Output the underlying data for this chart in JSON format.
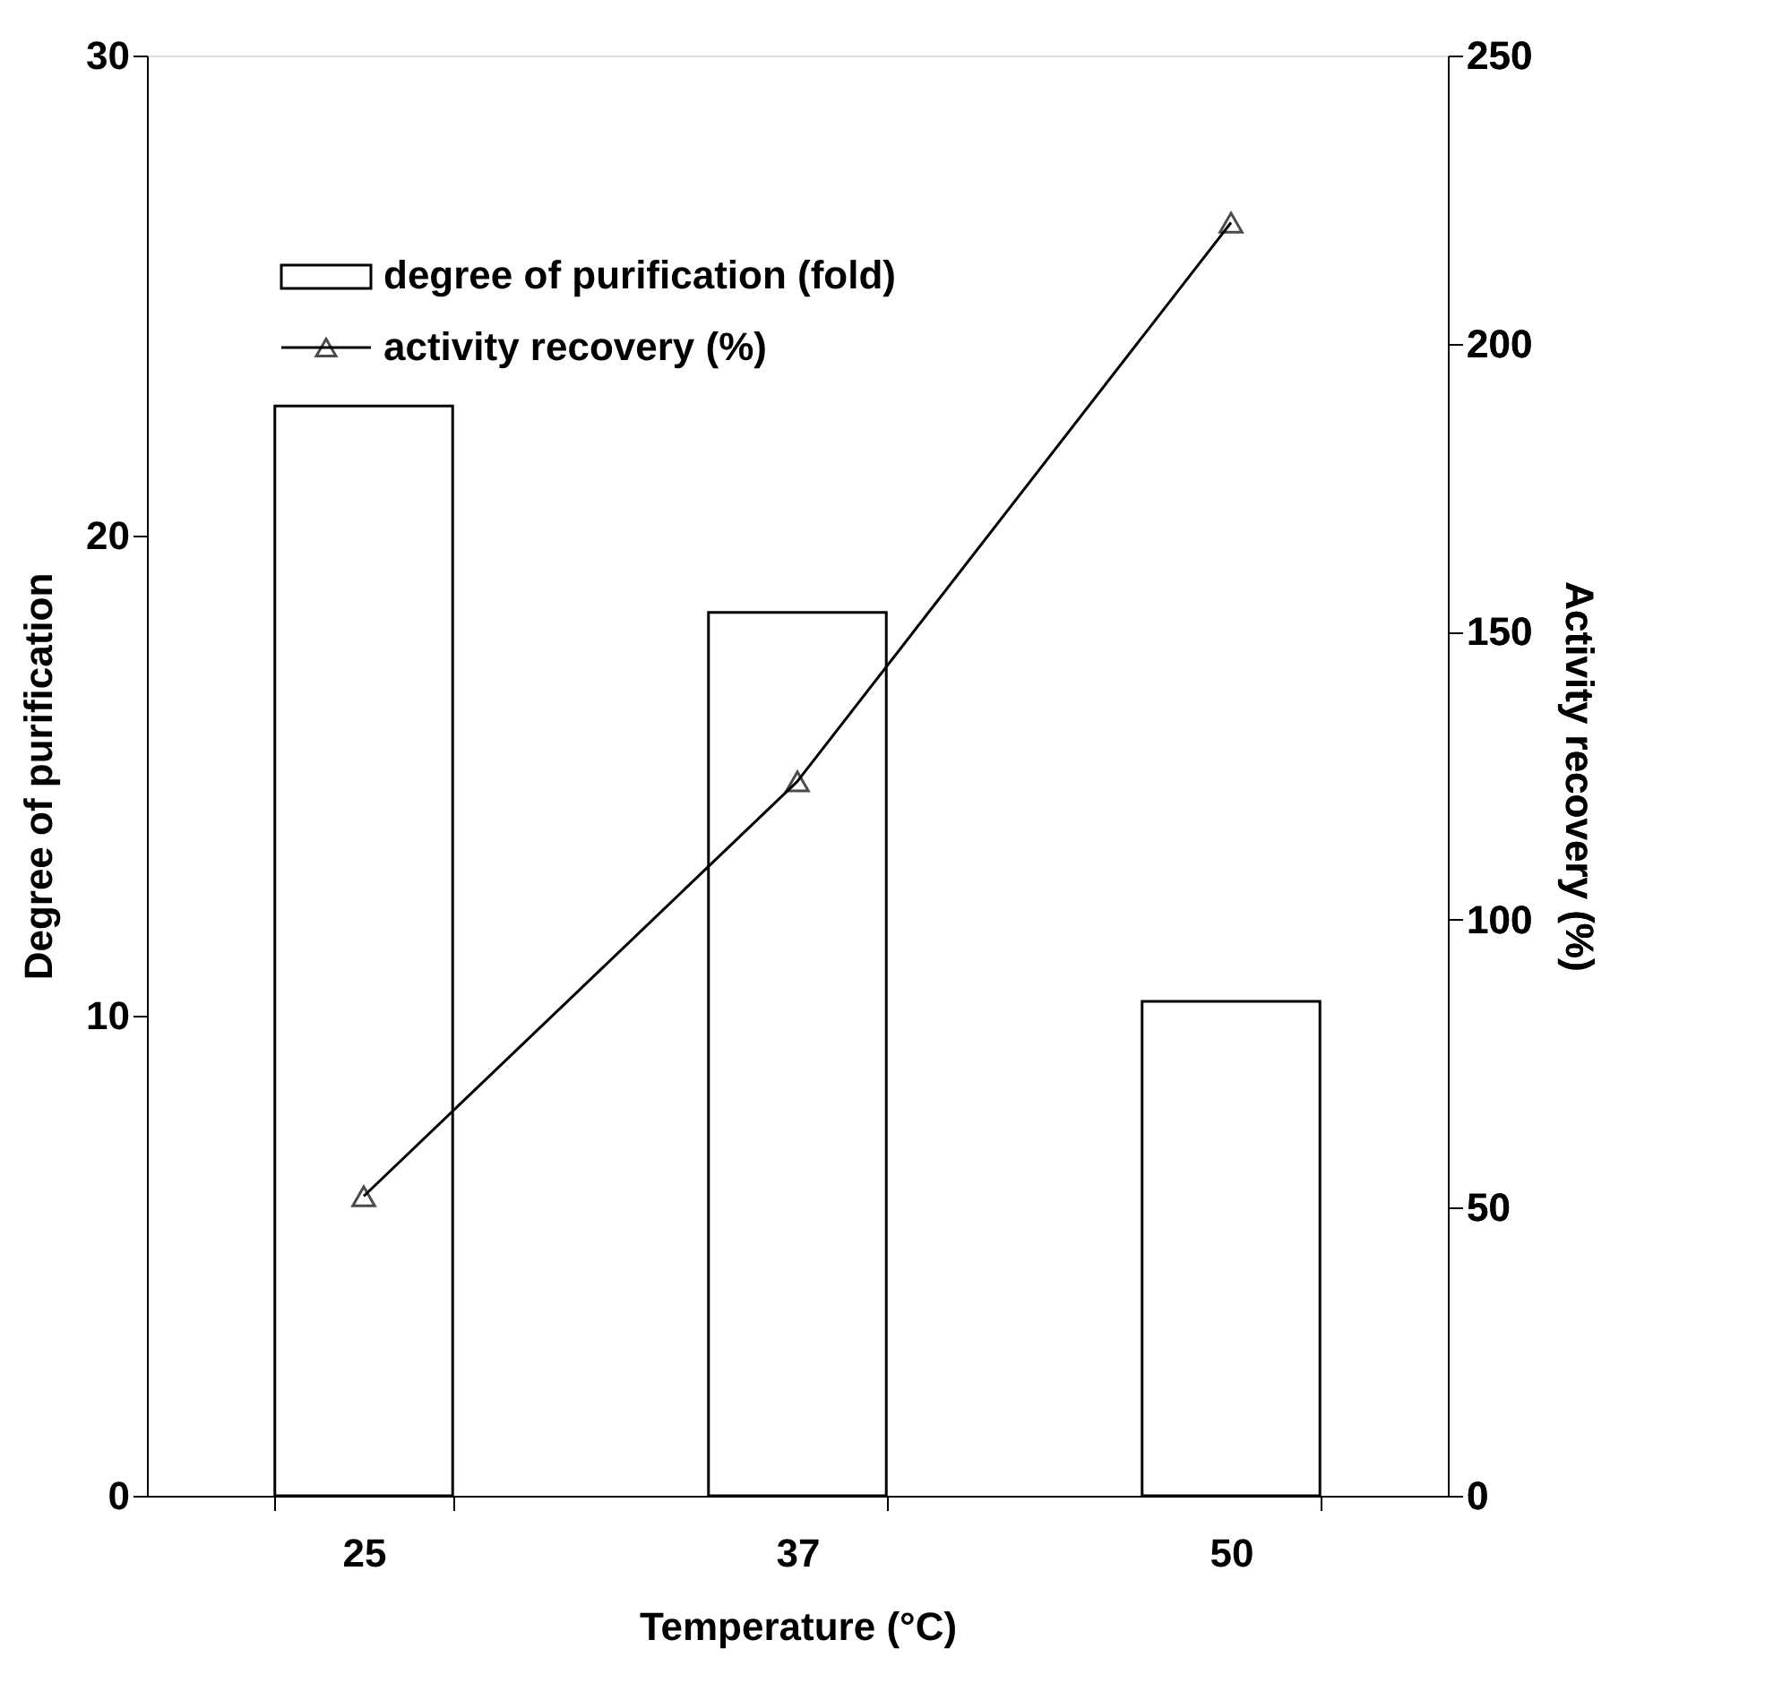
{
  "chart_data": {
    "type": "bar",
    "xlabel": "Temperature (°C)",
    "ylabel": "Degree of purification",
    "y2label": "Activity recovery (%)",
    "categories": [
      "25",
      "37",
      "50"
    ],
    "series": [
      {
        "name": "degree of purification (fold)",
        "color": "#ffffff",
        "values": [
          22.7,
          18.4,
          10.3
        ]
      },
      {
        "name": "activity recovery (%)",
        "type": "line",
        "axis": "y2",
        "color": "#000000",
        "marker": "triangle",
        "line_style": "solid",
        "values": [
          52,
          124,
          221
        ]
      }
    ],
    "ylim": [
      0,
      30
    ],
    "yticks": [
      0,
      10,
      20,
      30
    ],
    "y2lim": [
      0,
      250
    ],
    "y2ticks": [
      0,
      50,
      100,
      150,
      200,
      250
    ],
    "grid": false,
    "legend": "top left"
  }
}
